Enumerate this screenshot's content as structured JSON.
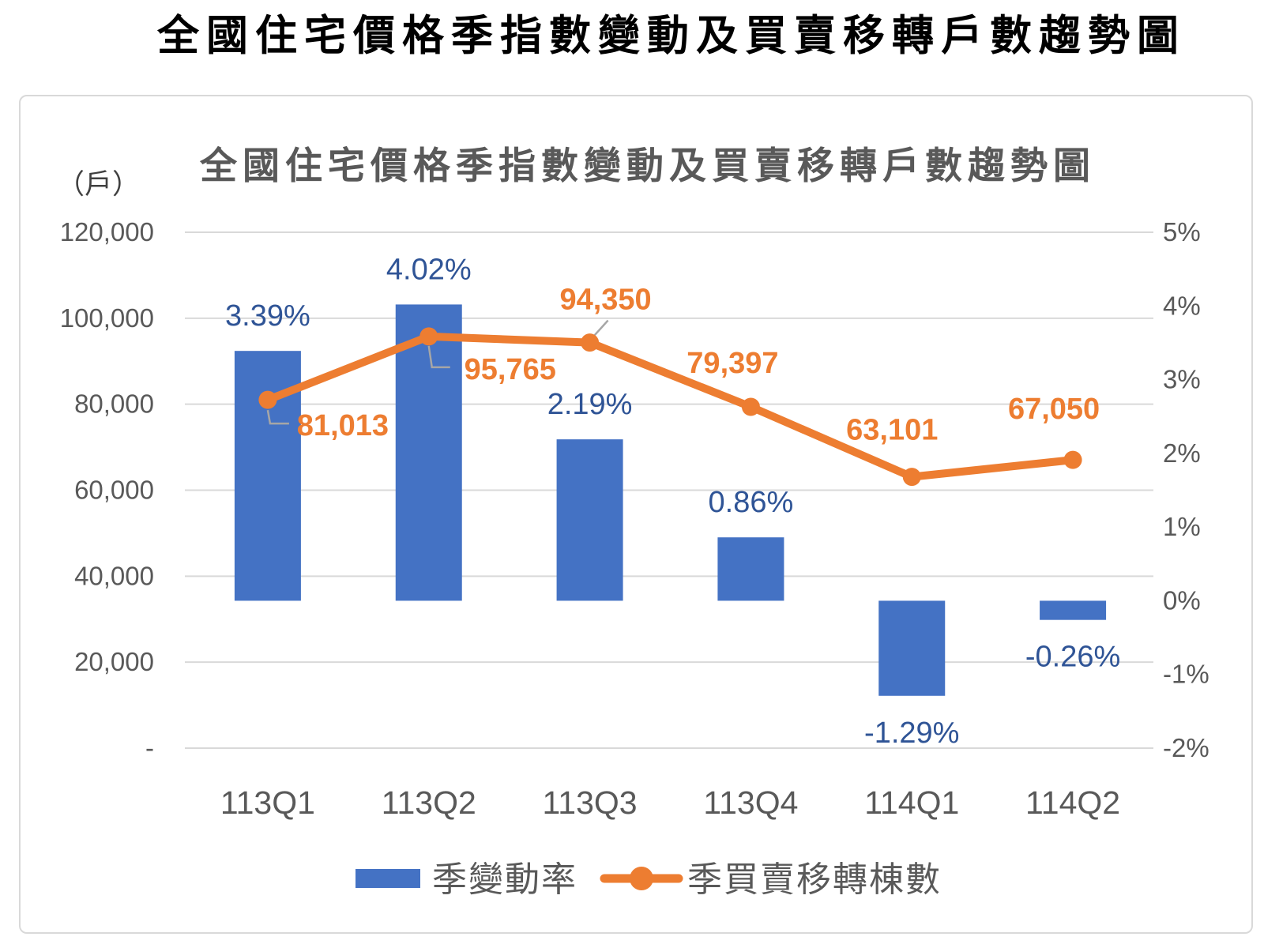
{
  "outer_title": "全國住宅價格季指數變動及買賣移轉戶數趨勢圖",
  "colors": {
    "bar": "#4472C4",
    "line": "#ED7D31",
    "bar_label": "#2F5496",
    "line_label": "#ED7D31",
    "axis_text": "#595959",
    "gridline": "#D9D9D9",
    "chart_border": "#D9D9D9",
    "leader_line": "#A6A6A6",
    "inner_title": "#595959",
    "outer_title": "#000000",
    "background": "#FFFFFF"
  },
  "chart_data": {
    "type": "bar",
    "subtype": "combo-bar-line-dual-axis",
    "title": "全國住宅價格季指數變動及買賣移轉戶數趨勢圖",
    "unit_label": "（戶）",
    "categories": [
      "113Q1",
      "113Q2",
      "113Q3",
      "113Q4",
      "114Q1",
      "114Q2"
    ],
    "series": [
      {
        "name": "季變動率",
        "type": "bar",
        "axis": "right",
        "values": [
          3.39,
          4.02,
          2.19,
          0.86,
          -1.29,
          -0.26
        ],
        "labels": [
          "3.39%",
          "4.02%",
          "2.19%",
          "0.86%",
          "-1.29%",
          "-0.26%"
        ],
        "color": "#4472C4"
      },
      {
        "name": "季買賣移轉棟數",
        "type": "line",
        "axis": "left",
        "values": [
          81013,
          95765,
          94350,
          79397,
          63101,
          67050
        ],
        "labels": [
          "81,013",
          "95,765",
          "94,350",
          "79,397",
          "63,101",
          "67,050"
        ],
        "color": "#ED7D31"
      }
    ],
    "left_axis": {
      "ticks": [
        "120,000",
        "100,000",
        "80,000",
        "60,000",
        "40,000",
        "20,000",
        "-"
      ],
      "values": [
        120000,
        100000,
        80000,
        60000,
        40000,
        20000,
        0
      ],
      "min": 0,
      "max": 120000
    },
    "right_axis": {
      "ticks": [
        "5%",
        "4%",
        "3%",
        "2%",
        "1%",
        "0%",
        "-1%",
        "-2%"
      ],
      "values": [
        5,
        4,
        3,
        2,
        1,
        0,
        -1,
        -2
      ],
      "min": -2,
      "max": 5
    },
    "grid": "horizontal-left-axis",
    "legend_position": "bottom",
    "legend": [
      {
        "label": "季變動率",
        "swatch": "bar"
      },
      {
        "label": "季買賣移轉棟數",
        "swatch": "line-marker"
      }
    ]
  }
}
